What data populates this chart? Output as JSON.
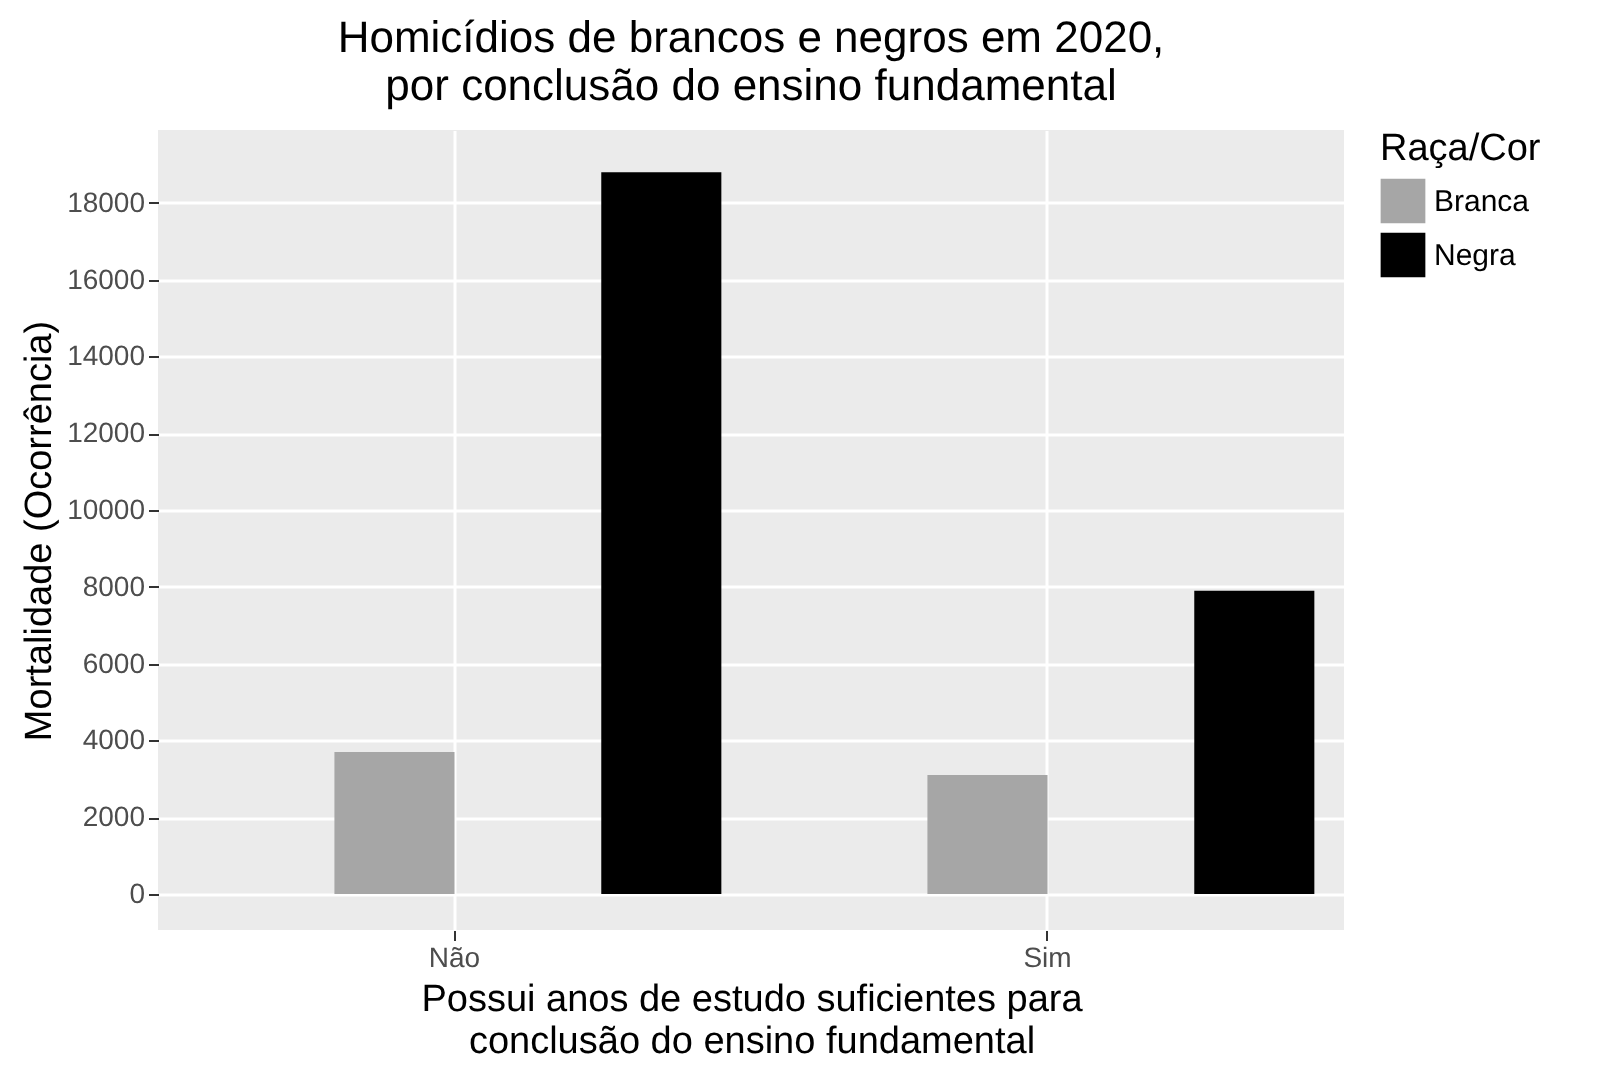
{
  "chart_data": {
    "type": "bar",
    "title": "Homicídios de brancos e negros em 2020,\npor conclusão do ensino fundamental",
    "xlabel": "Possui anos de estudo suficientes para\nconclusão do ensino fundamental",
    "ylabel": "Mortalidade (Ocorrência)",
    "legend_title": "Raça/Cor",
    "categories": [
      "Não",
      "Sim"
    ],
    "series": [
      {
        "name": "Branca",
        "color": "#a6a6a6",
        "values": [
          3700,
          3100
        ]
      },
      {
        "name": "Negra",
        "color": "#000000",
        "values": [
          18800,
          7900
        ]
      }
    ],
    "ylim": [
      -940,
      19900
    ],
    "yticks": [
      0,
      2000,
      4000,
      6000,
      8000,
      10000,
      12000,
      14000,
      16000,
      18000
    ],
    "grid": true,
    "legend": "right"
  }
}
